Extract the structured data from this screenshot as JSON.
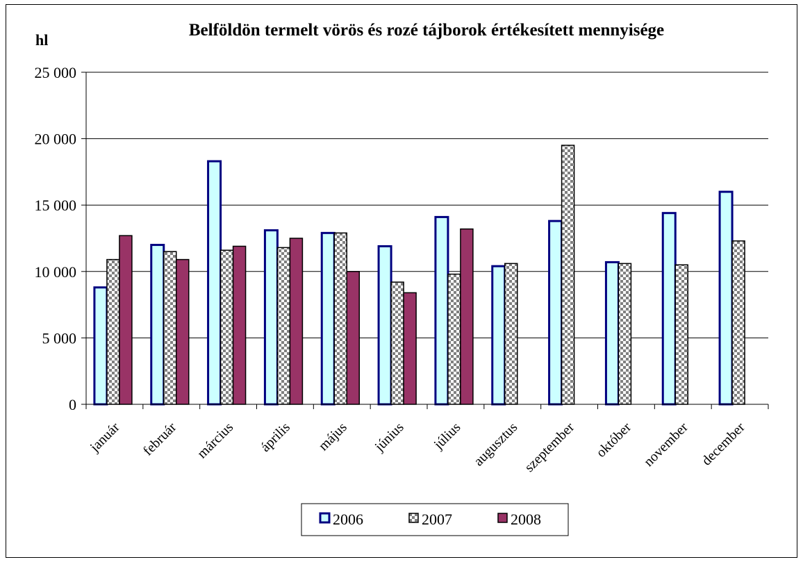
{
  "chart_data": {
    "type": "bar",
    "title": "Belföldön termelt vörös és rozé tájborok értékesített mennyisége",
    "ylabel": "hl",
    "xlabel": "",
    "ylim": [
      0,
      25000
    ],
    "yticks": [
      0,
      5000,
      10000,
      15000,
      20000,
      25000
    ],
    "ytick_labels": [
      "0",
      "5 000",
      "10 000",
      "15 000",
      "20 000",
      "25 000"
    ],
    "grid": true,
    "legend_position": "bottom",
    "categories": [
      "január",
      "február",
      "március",
      "április",
      "május",
      "június",
      "július",
      "augusztus",
      "szeptember",
      "október",
      "november",
      "december"
    ],
    "series": [
      {
        "name": "2006",
        "values": [
          8800,
          12000,
          18300,
          13100,
          12900,
          11900,
          14100,
          10400,
          13800,
          10700,
          14400,
          16000
        ],
        "fill": "#ccffff",
        "stroke": "#000080",
        "pattern": "solid"
      },
      {
        "name": "2007",
        "values": [
          10900,
          11500,
          11600,
          11800,
          12900,
          9200,
          9800,
          10600,
          19500,
          10600,
          10500,
          12300
        ],
        "fill": "#c0c0c0",
        "stroke": "#000000",
        "pattern": "checker"
      },
      {
        "name": "2008",
        "values": [
          12700,
          10900,
          11900,
          12500,
          10000,
          8400,
          13200,
          null,
          null,
          null,
          null,
          null
        ],
        "fill": "#993366",
        "stroke": "#000000",
        "pattern": "solid"
      }
    ]
  }
}
